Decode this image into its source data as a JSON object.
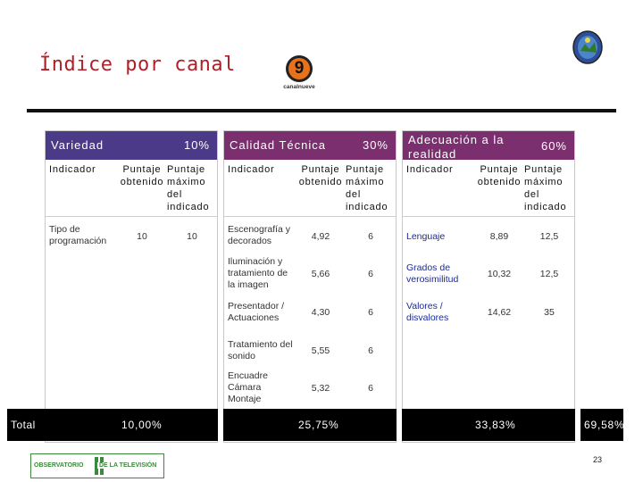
{
  "slide": {
    "title": "Índice por canal",
    "page_number": "23",
    "channel_logo": {
      "digit": "9",
      "caption": "canalnueve"
    },
    "footer_logo": {
      "left": "OBSERVATORIO",
      "right": "DE LA TELEVISIÓN"
    }
  },
  "columns": [
    {
      "name": "Variedad",
      "weight": "10%",
      "header": {
        "indicator": "Indicador",
        "score": "Puntaje obtenido",
        "max": "Puntaje máximo del indicado"
      },
      "rows": [
        {
          "indicator": "Tipo de programación",
          "score": "10",
          "max": "10"
        }
      ],
      "total": "10,00%"
    },
    {
      "name": "Calidad Técnica",
      "weight": "30%",
      "header": {
        "indicator": "Indicador",
        "score": "Puntaje obtenido",
        "max": "Puntaje máximo del indicado"
      },
      "rows": [
        {
          "indicator": "Escenografía y decorados",
          "score": "4,92",
          "max": "6"
        },
        {
          "indicator": "Iluminación y tratamiento de la imagen",
          "score": "5,66",
          "max": "6"
        },
        {
          "indicator": "Presentador / Actuaciones",
          "score": "4,30",
          "max": "6"
        },
        {
          "indicator": "Tratamiento del sonido",
          "score": "5,55",
          "max": "6"
        },
        {
          "indicator": "Encuadre Cámara Montaje",
          "score": "5,32",
          "max": "6"
        }
      ],
      "total": "25,75%"
    },
    {
      "name": "Adecuación a la realidad",
      "weight": "60%",
      "header": {
        "indicator": "Indicador",
        "score": "Puntaje obtenido",
        "max": "Puntaje máximo del indicado"
      },
      "rows": [
        {
          "indicator": "Lenguaje",
          "score": "8,89",
          "max": "12,5"
        },
        {
          "indicator": "Grados de verosimilitud",
          "score": "10,32",
          "max": "12,5"
        },
        {
          "indicator": "Valores / disvalores",
          "score": "14,62",
          "max": "35"
        }
      ],
      "total": "33,83%"
    }
  ],
  "total_row": {
    "label": "Total",
    "grand_total": "69,58%"
  }
}
